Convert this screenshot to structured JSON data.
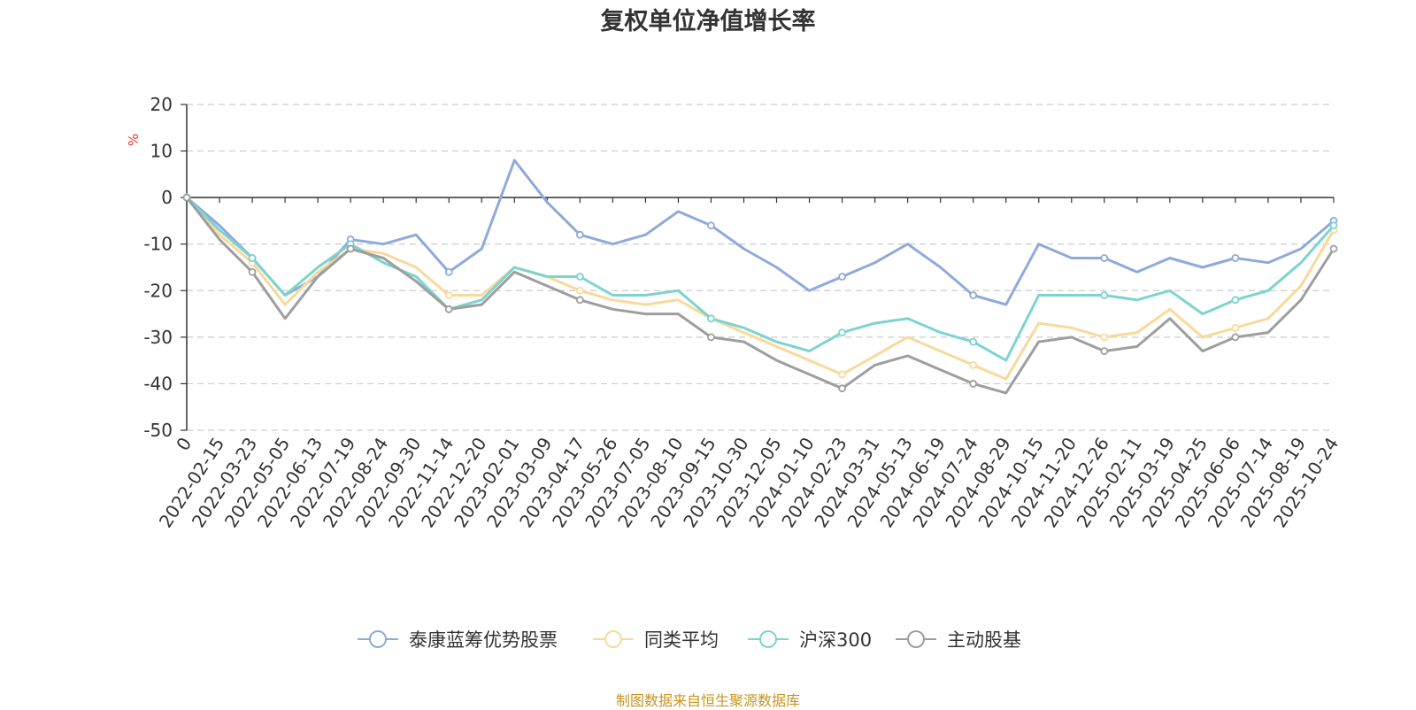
{
  "chart_data": {
    "type": "line",
    "title": "复权单位净值增长率",
    "ylabel": "%",
    "xlabel": "",
    "ylim": [
      -50,
      20
    ],
    "y_ticks": [
      20,
      10,
      0,
      -10,
      -20,
      -30,
      -40,
      -50
    ],
    "grid": true,
    "legend_position": "bottom",
    "x": [
      "0",
      "2022-02-15",
      "2022-03-23",
      "2022-05-05",
      "2022-06-13",
      "2022-07-19",
      "2022-08-24",
      "2022-09-30",
      "2022-11-14",
      "2022-12-20",
      "2023-02-01",
      "2023-03-09",
      "2023-04-17",
      "2023-05-26",
      "2023-07-05",
      "2023-08-10",
      "2023-09-15",
      "2023-10-30",
      "2023-12-05",
      "2024-01-10",
      "2024-02-23",
      "2024-03-31",
      "2024-05-13",
      "2024-06-19",
      "2024-07-24",
      "2024-08-29",
      "2024-10-15",
      "2024-11-20",
      "2024-12-26",
      "2025-02-11",
      "2025-03-19",
      "2025-04-25",
      "2025-06-06",
      "2025-07-14",
      "2025-08-19",
      "2025-10-24"
    ],
    "series": [
      {
        "name": "泰康蓝筹优势股票",
        "color": "#8eaadb",
        "values": [
          0,
          -6,
          -13,
          -21,
          -17,
          -9,
          -10,
          -8,
          -16,
          -11,
          8,
          -1,
          -8,
          -10,
          -8,
          -3,
          -6,
          -11,
          -15,
          -20,
          -17,
          -14,
          -10,
          -15,
          -21,
          -23,
          -10,
          -13,
          -13,
          -16,
          -13,
          -15,
          -13,
          -14,
          -11,
          -5
        ]
      },
      {
        "name": "同类平均",
        "color": "#f9d99b",
        "values": [
          0,
          -8,
          -14,
          -23,
          -16,
          -11,
          -12,
          -15,
          -21,
          -21,
          -15,
          -17,
          -20,
          -22,
          -23,
          -22,
          -26,
          -29,
          -32,
          -35,
          -38,
          -34,
          -30,
          -33,
          -36,
          -39,
          -27,
          -28,
          -30,
          -29,
          -24,
          -30,
          -28,
          -26,
          -19,
          -7
        ]
      },
      {
        "name": "沪深300",
        "color": "#7dd3cf",
        "values": [
          0,
          -7,
          -13,
          -21,
          -15,
          -10,
          -14,
          -17,
          -24,
          -22,
          -15,
          -17,
          -17,
          -21,
          -21,
          -20,
          -26,
          -28,
          -31,
          -33,
          -29,
          -27,
          -26,
          -29,
          -31,
          -35,
          -21,
          -21,
          -21,
          -22,
          -20,
          -25,
          -22,
          -20,
          -14,
          -6
        ]
      },
      {
        "name": "主动股基",
        "color": "#9e9e9e",
        "values": [
          0,
          -9,
          -16,
          -26,
          -17,
          -11,
          -13,
          -18,
          -24,
          -23,
          -16,
          -19,
          -22,
          -24,
          -25,
          -25,
          -30,
          -31,
          -35,
          -38,
          -41,
          -36,
          -34,
          -37,
          -40,
          -42,
          -31,
          -30,
          -33,
          -32,
          -26,
          -33,
          -30,
          -29,
          -22,
          -11
        ]
      }
    ]
  },
  "source_note": "制图数据来自恒生聚源数据库"
}
